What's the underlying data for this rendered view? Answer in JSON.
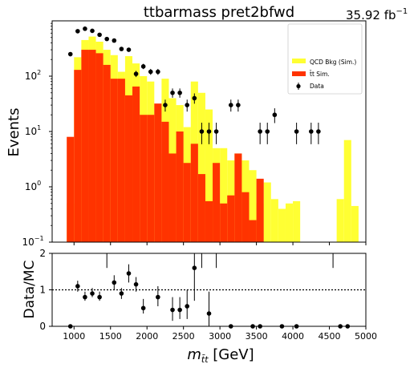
{
  "chart_data": [
    {
      "type": "bar",
      "title": "ttbarmass  pret2bfwd",
      "lumi_label": "35.92 fb",
      "lumi_exp": "−1",
      "ylabel": "Events",
      "yscale": "log",
      "ylim": [
        0.1,
        1000
      ],
      "xlim": [
        700,
        5000
      ],
      "bin_width": 100,
      "y_ticks": [
        {
          "base": "10",
          "exp": "−1",
          "value": 0.1
        },
        {
          "base": "10",
          "exp": "0",
          "value": 1
        },
        {
          "base": "10",
          "exp": "1",
          "value": 10
        },
        {
          "base": "10",
          "exp": "2",
          "value": 100
        }
      ],
      "legend": {
        "placement": "top-right",
        "entries": [
          {
            "label": "QCD Bkg (Sim.)",
            "color": "#ffff33"
          },
          {
            "label": "t̄t Sim.",
            "color": "#ff3300"
          },
          {
            "label": "Data",
            "color": "#000000"
          }
        ]
      },
      "series": [
        {
          "name": "QCD Bkg (Sim.)",
          "color": "#ffff33",
          "bins": [
            [
              900,
              0.5
            ],
            [
              1000,
              220
            ],
            [
              1100,
              450
            ],
            [
              1200,
              520
            ],
            [
              1300,
              420
            ],
            [
              1400,
              300
            ],
            [
              1500,
              240
            ],
            [
              1600,
              120
            ],
            [
              1700,
              230
            ],
            [
              1800,
              170
            ],
            [
              1900,
              100
            ],
            [
              2000,
              80
            ],
            [
              2100,
              4
            ],
            [
              2200,
              90
            ],
            [
              2300,
              40
            ],
            [
              2400,
              30
            ],
            [
              2500,
              12
            ],
            [
              2600,
              80
            ],
            [
              2700,
              50
            ],
            [
              2800,
              25
            ],
            [
              2900,
              5
            ],
            [
              3000,
              5
            ],
            [
              3100,
              3
            ],
            [
              3200,
              4
            ],
            [
              3300,
              3
            ],
            [
              3400,
              2
            ],
            [
              3500,
              0.5
            ],
            [
              3600,
              1.2
            ],
            [
              3700,
              0.6
            ],
            [
              3800,
              0.4
            ],
            [
              3900,
              0.5
            ],
            [
              4000,
              0.55
            ],
            [
              4600,
              0.6
            ],
            [
              4700,
              7
            ],
            [
              4800,
              0.45
            ]
          ]
        },
        {
          "name": "t̄t Sim.",
          "color": "#ff3300",
          "bins": [
            [
              900,
              8
            ],
            [
              1000,
              130
            ],
            [
              1100,
              300
            ],
            [
              1200,
              300
            ],
            [
              1300,
              260
            ],
            [
              1400,
              160
            ],
            [
              1500,
              90
            ],
            [
              1600,
              90
            ],
            [
              1700,
              45
            ],
            [
              1800,
              65
            ],
            [
              1900,
              20
            ],
            [
              2000,
              20
            ],
            [
              2100,
              32
            ],
            [
              2200,
              15
            ],
            [
              2300,
              4
            ],
            [
              2400,
              10
            ],
            [
              2500,
              2.7
            ],
            [
              2600,
              6
            ],
            [
              2700,
              1.7
            ],
            [
              2800,
              0.55
            ],
            [
              2900,
              2.7
            ],
            [
              3000,
              0.5
            ],
            [
              3100,
              0.7
            ],
            [
              3200,
              4
            ],
            [
              3300,
              0.8
            ],
            [
              3400,
              0.25
            ],
            [
              3500,
              1.4
            ]
          ]
        }
      ],
      "data_points": [
        [
          950,
          250
        ],
        [
          1050,
          650
        ],
        [
          1150,
          720
        ],
        [
          1250,
          660
        ],
        [
          1350,
          560
        ],
        [
          1450,
          470
        ],
        [
          1550,
          440
        ],
        [
          1650,
          310
        ],
        [
          1750,
          300
        ],
        [
          1850,
          110
        ],
        [
          1950,
          150
        ],
        [
          2050,
          120
        ],
        [
          2150,
          120
        ],
        [
          2250,
          30
        ],
        [
          2350,
          50
        ],
        [
          2450,
          50
        ],
        [
          2550,
          30
        ],
        [
          2650,
          40
        ],
        [
          2750,
          10
        ],
        [
          2850,
          10
        ],
        [
          2950,
          10
        ],
        [
          3150,
          30
        ],
        [
          3250,
          30
        ],
        [
          3550,
          10
        ],
        [
          3650,
          10
        ],
        [
          3750,
          20
        ],
        [
          4050,
          10
        ],
        [
          4250,
          10
        ],
        [
          4350,
          10
        ]
      ]
    },
    {
      "type": "scatter",
      "ylabel": "Data/MC",
      "xlabel": "m",
      "xlabel_sub": "t̄t",
      "xlabel_unit": " [GeV]",
      "xlim": [
        700,
        5000
      ],
      "ylim": [
        0,
        2
      ],
      "x_ticks": [
        "1000",
        "1500",
        "2000",
        "2500",
        "3000",
        "3500",
        "4000",
        "4500",
        "5000"
      ],
      "y_ticks": [
        "0",
        "1",
        "2"
      ],
      "reference_line": 1,
      "points": [
        [
          950,
          0
        ],
        [
          1050,
          1.1
        ],
        [
          1150,
          0.8
        ],
        [
          1250,
          0.9
        ],
        [
          1350,
          0.8
        ],
        [
          1550,
          1.2
        ],
        [
          1650,
          0.9
        ],
        [
          1750,
          1.45
        ],
        [
          1850,
          1.15
        ],
        [
          1950,
          0.5
        ],
        [
          2150,
          0.8
        ],
        [
          2350,
          0.45
        ],
        [
          2450,
          0.45
        ],
        [
          2550,
          0.55
        ],
        [
          2650,
          1.6
        ],
        [
          2850,
          0.35
        ],
        [
          3150,
          0
        ],
        [
          3450,
          0
        ],
        [
          3550,
          0
        ],
        [
          3850,
          0
        ],
        [
          4050,
          0
        ],
        [
          4650,
          0
        ],
        [
          4750,
          0
        ]
      ],
      "errors_up": [
        0,
        0.15,
        0.15,
        0.15,
        0.15,
        0.2,
        0.15,
        0.25,
        0.2,
        0.25,
        0.3,
        0.35,
        0.35,
        0.45,
        0.9,
        0.6,
        0,
        0,
        0,
        0,
        0,
        0,
        0
      ],
      "errors_down": [
        0,
        0.15,
        0.1,
        0.1,
        0.1,
        0.2,
        0.15,
        0.25,
        0.2,
        0.15,
        0.25,
        0.3,
        0.25,
        0.35,
        0.9,
        0.35,
        0,
        0,
        0,
        0,
        0,
        0,
        0
      ],
      "offscale_markers": [
        1450,
        2750,
        2950,
        4550
      ]
    }
  ]
}
